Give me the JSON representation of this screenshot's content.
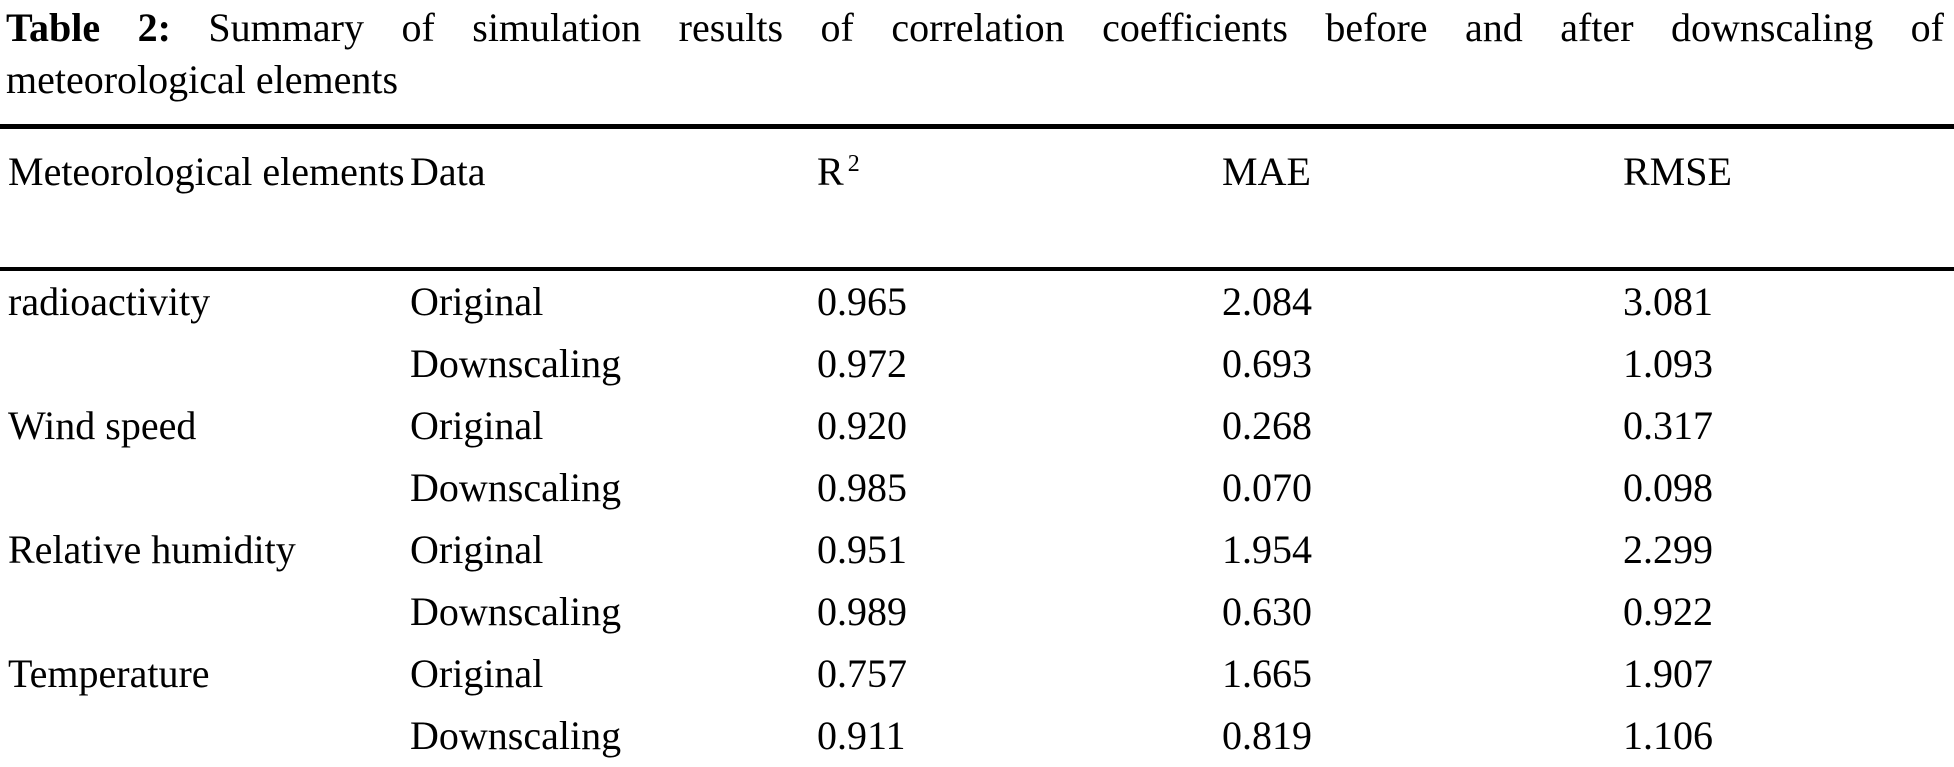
{
  "caption": {
    "label": "Table 2:",
    "line1": "Summary of simulation results of correlation coefficients before and after downscaling of",
    "line2": "meteorological elements"
  },
  "table": {
    "header": {
      "col1": "Meteorological elements",
      "col2": "Data",
      "col3_base": "R",
      "col3_sup": "2",
      "col4": "MAE",
      "col5": "RMSE"
    },
    "rows": [
      {
        "element": "radioactivity",
        "data": "Original",
        "r2": "0.965",
        "mae": "2.084",
        "rmse": "3.081"
      },
      {
        "element": "",
        "data": "Downscaling",
        "r2": "0.972",
        "mae": "0.693",
        "rmse": "1.093"
      },
      {
        "element": "Wind speed",
        "data": "Original",
        "r2": "0.920",
        "mae": "0.268",
        "rmse": "0.317"
      },
      {
        "element": "",
        "data": "Downscaling",
        "r2": "0.985",
        "mae": "0.070",
        "rmse": "0.098"
      },
      {
        "element": "Relative humidity",
        "data": "Original",
        "r2": "0.951",
        "mae": "1.954",
        "rmse": "2.299"
      },
      {
        "element": "",
        "data": "Downscaling",
        "r2": "0.989",
        "mae": "0.630",
        "rmse": "0.922"
      },
      {
        "element": "Temperature",
        "data": "Original",
        "r2": "0.757",
        "mae": "1.665",
        "rmse": "1.907"
      },
      {
        "element": "",
        "data": "Downscaling",
        "r2": "0.911",
        "mae": "0.819",
        "rmse": "1.106"
      }
    ]
  },
  "chart_data": {
    "type": "table",
    "title": "Table 2: Summary of simulation results of correlation coefficients before and after downscaling of meteorological elements",
    "columns": [
      "Meteorological elements",
      "Data",
      "R2",
      "MAE",
      "RMSE"
    ],
    "rows": [
      [
        "radioactivity",
        "Original",
        0.965,
        2.084,
        3.081
      ],
      [
        "radioactivity",
        "Downscaling",
        0.972,
        0.693,
        1.093
      ],
      [
        "Wind speed",
        "Original",
        0.92,
        0.268,
        0.317
      ],
      [
        "Wind speed",
        "Downscaling",
        0.985,
        0.07,
        0.098
      ],
      [
        "Relative humidity",
        "Original",
        0.951,
        1.954,
        2.299
      ],
      [
        "Relative humidity",
        "Downscaling",
        0.989,
        0.63,
        0.922
      ],
      [
        "Temperature",
        "Original",
        0.757,
        1.665,
        1.907
      ],
      [
        "Temperature",
        "Downscaling",
        0.911,
        0.819,
        1.106
      ]
    ]
  }
}
